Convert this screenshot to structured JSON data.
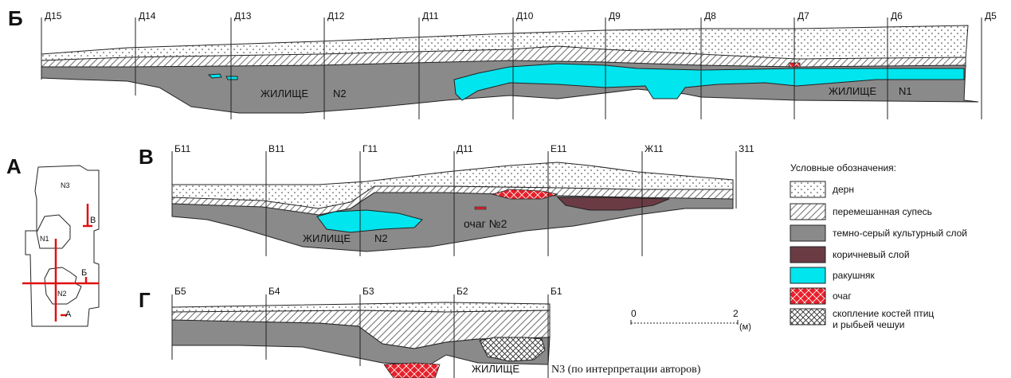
{
  "sections": {
    "B": {
      "letter": "Б",
      "ticks": [
        "Д15",
        "Д14",
        "Д13",
        "Д12",
        "Д11",
        "Д10",
        "Д9",
        "Д8",
        "Д7",
        "Д6",
        "Д5"
      ],
      "dwelling_word": "ЖИЛИЩЕ",
      "dwelling1_num": "N1",
      "dwelling2_num": "N2"
    },
    "V": {
      "letter": "В",
      "ticks": [
        "Б11",
        "В11",
        "Г11",
        "Д11",
        "Е11",
        "Ж11",
        "З11"
      ],
      "dwelling_word": "ЖИЛИЩЕ",
      "dwelling_num": "N2",
      "hearth_label": "очаг №2"
    },
    "G": {
      "letter": "Г",
      "ticks": [
        "Б5",
        "Б4",
        "Б3",
        "Б2",
        "Б1"
      ],
      "dwelling_word": "ЖИЛИЩЕ",
      "dwelling_note": "N3 (по интерпретации авторов)"
    },
    "A": {
      "letter": "А",
      "rooms": [
        "N3",
        "N1",
        "N2"
      ],
      "cut_marks": [
        "В",
        "Б",
        "А"
      ]
    }
  },
  "scale": {
    "start": "0",
    "end": "2",
    "unit": "(м)"
  },
  "legend": {
    "title": "Условные обозначения:",
    "items": [
      {
        "id": "sod",
        "label": "дерн"
      },
      {
        "id": "mixed",
        "label": "перемешанная супесь"
      },
      {
        "id": "culture",
        "label": "темно-серый культурный слой"
      },
      {
        "id": "brown",
        "label": "коричневый слой"
      },
      {
        "id": "shell",
        "label": "ракушняк"
      },
      {
        "id": "hearth",
        "label": "очаг"
      },
      {
        "id": "bones",
        "label": "скопление костей птиц",
        "label2": "и рыбьей чешуи"
      }
    ]
  },
  "colors": {
    "culture": "#8a8a8a",
    "shell": "#00e5ee",
    "brown": "#6b3b44",
    "hearth": "#e8202a",
    "cut_line": "#e01010"
  }
}
